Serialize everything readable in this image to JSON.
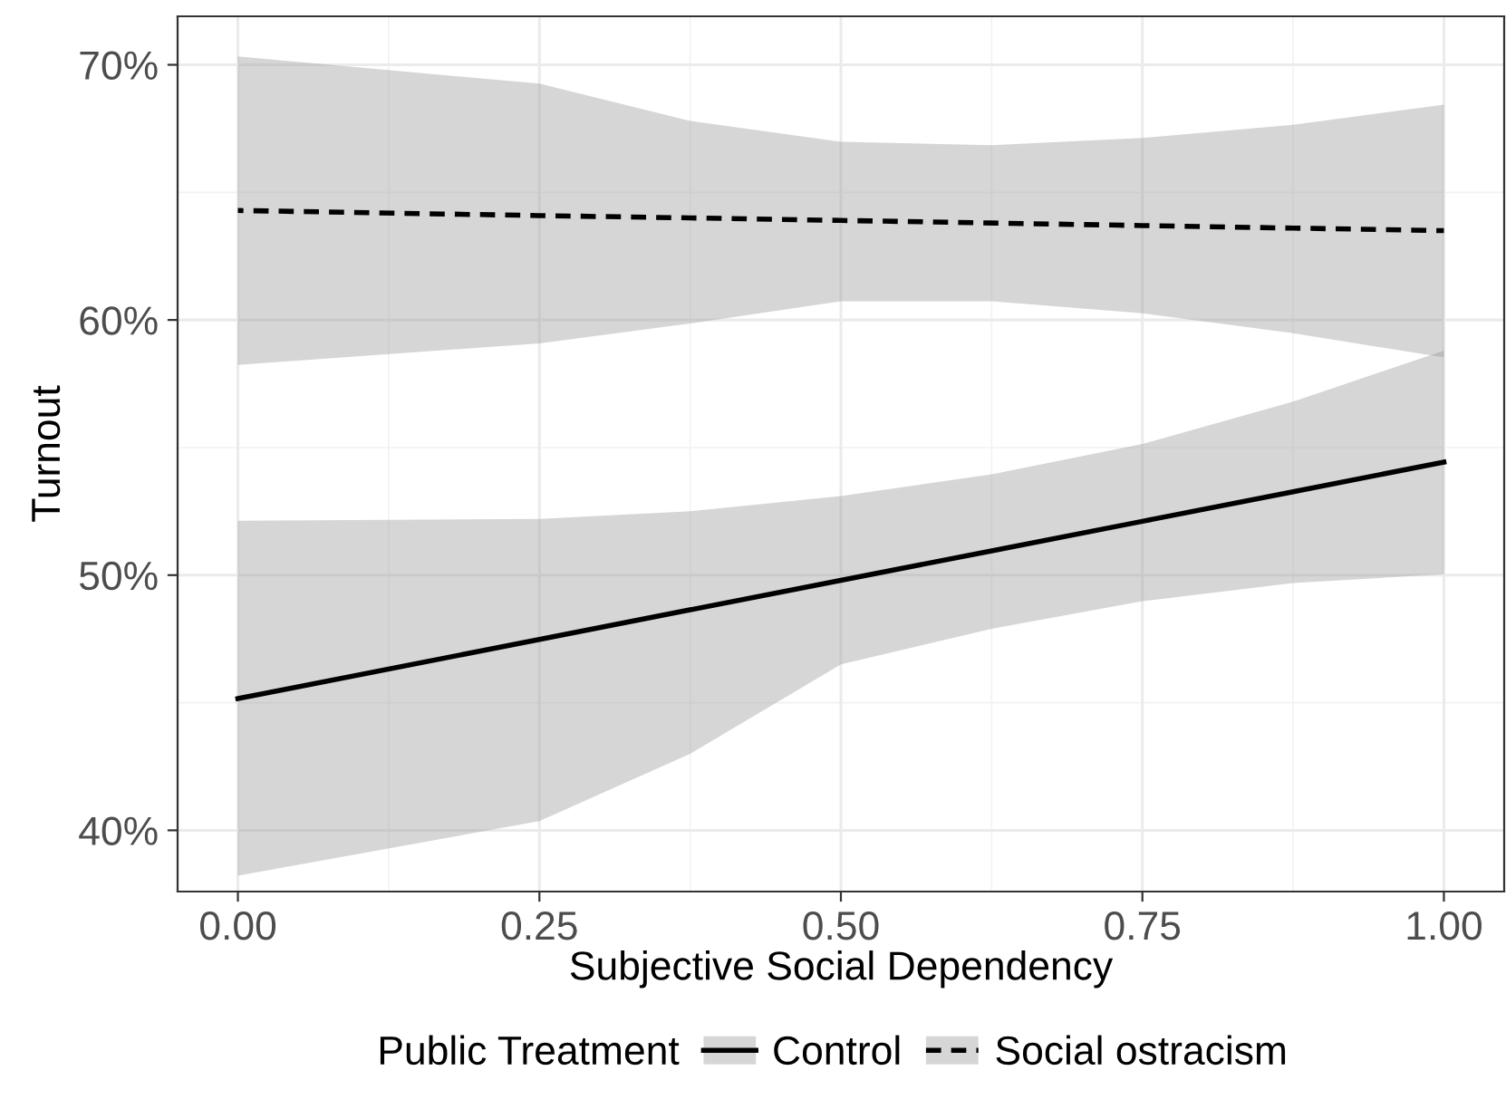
{
  "chart_data": {
    "type": "line",
    "xlabel": "Subjective Social Dependency",
    "ylabel": "Turnout",
    "legend_title": "Public Treatment",
    "xlim": [
      -0.05,
      1.05
    ],
    "xticks": [
      {
        "value": 0,
        "label": "0.00"
      },
      {
        "value": 0.25,
        "label": "0.25"
      },
      {
        "value": 0.5,
        "label": "0.50"
      },
      {
        "value": 0.75,
        "label": "0.75"
      },
      {
        "value": 1,
        "label": "1.00"
      }
    ],
    "ylim": [
      37.6,
      71.9
    ],
    "yticks": [
      {
        "value": 40,
        "label": "40%"
      },
      {
        "value": 50,
        "label": "50%"
      },
      {
        "value": 60,
        "label": "60%"
      },
      {
        "value": 70,
        "label": "70%"
      }
    ],
    "grid": true,
    "legend": "bottom",
    "marker": "none",
    "series": [
      {
        "name": "Control",
        "color": "#000000",
        "line_style": "solid",
        "x": [
          0,
          0.25,
          0.375,
          0.5,
          0.625,
          0.75,
          0.875,
          1
        ],
        "values": [
          45.16,
          47.48,
          48.64,
          49.8,
          50.95,
          52.11,
          53.27,
          54.43
        ],
        "lower": [
          38.22,
          40.36,
          43.0,
          46.5,
          47.9,
          48.98,
          49.69,
          50.04
        ],
        "upper": [
          52.13,
          52.2,
          52.5,
          53.1,
          53.95,
          55.14,
          56.8,
          58.8
        ]
      },
      {
        "name": "Social ostracism",
        "color": "#000000",
        "line_style": "dashed",
        "x": [
          0,
          0.25,
          0.375,
          0.5,
          0.625,
          0.75,
          0.875,
          1
        ],
        "values": [
          64.29,
          64.09,
          64.0,
          63.9,
          63.8,
          63.7,
          63.6,
          63.5
        ],
        "lower": [
          58.24,
          59.08,
          59.86,
          60.73,
          60.73,
          60.26,
          59.48,
          58.53
        ],
        "upper": [
          70.33,
          69.26,
          67.8,
          66.98,
          66.85,
          67.13,
          67.65,
          68.44
        ]
      }
    ]
  }
}
